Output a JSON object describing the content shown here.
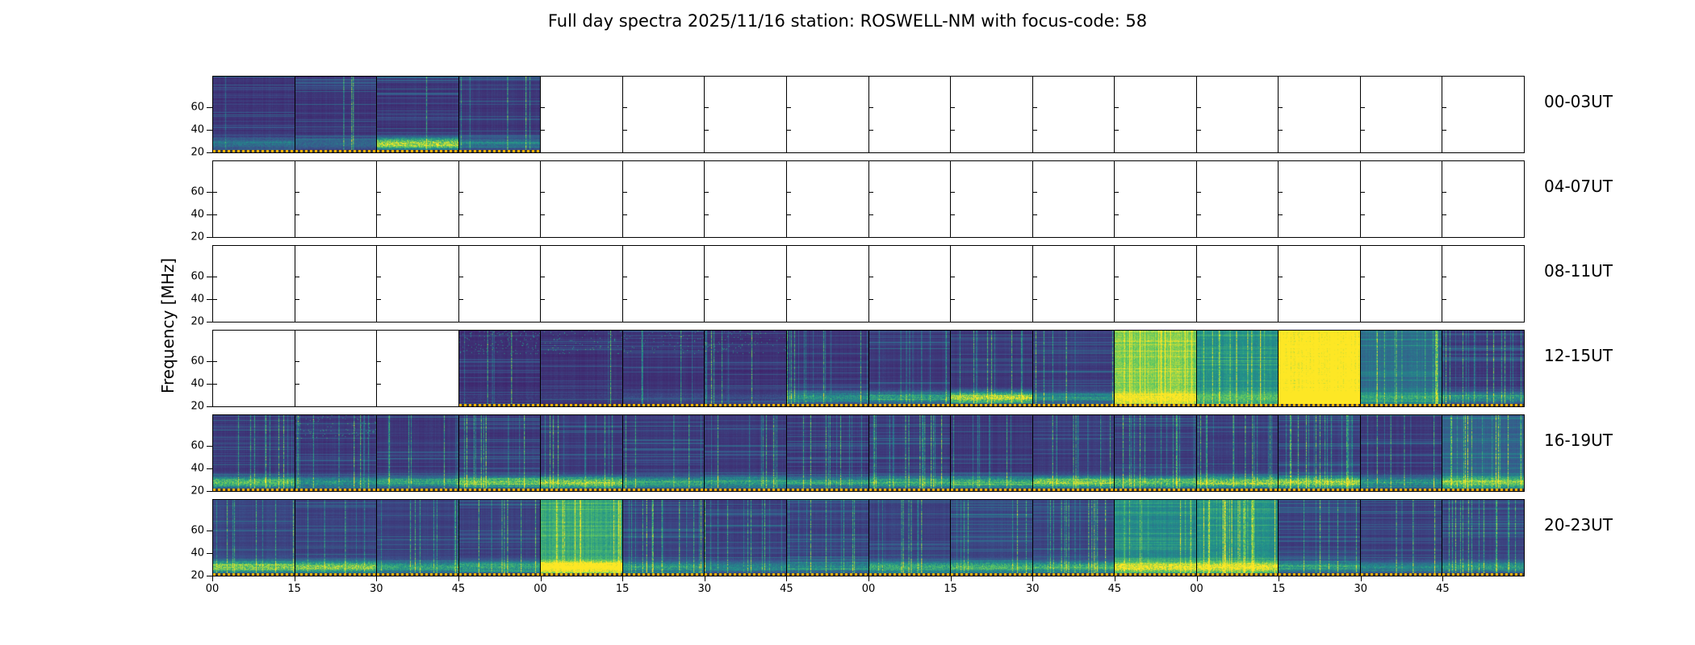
{
  "header": {
    "title": "Full day spectra 2025/11/16 station: ROSWELL-NM with focus-code: 58",
    "date": "2025/11/16",
    "station": "ROSWELL-NM",
    "focus_code": "58"
  },
  "chart_data": {
    "type": "heatmap",
    "title": "Full day spectra 2025/11/16 station: ROSWELL-NM with focus-code: 58",
    "ylabel": "Frequency [MHz]",
    "colormap": "viridis",
    "y_ticks": [
      60,
      40,
      20
    ],
    "y_range_mhz": [
      20,
      87
    ],
    "panels_per_row": 16,
    "minutes_per_panel": 15,
    "x_tick_labels": [
      "00",
      "15",
      "30",
      "45",
      "00",
      "15",
      "30",
      "45",
      "00",
      "15",
      "30",
      "45",
      "00",
      "15",
      "30",
      "45"
    ],
    "colors": {
      "background": "#ffffff",
      "frame": "#000000",
      "marker_line": "#ffb000",
      "cmap_low": "#440154",
      "cmap_mid": "#21918c",
      "cmap_high": "#fde725"
    },
    "rows": [
      {
        "label": "00-03UT",
        "panels": [
          {
            "s": "d",
            "b": 0.12,
            "bb": 0.3,
            "st": 0.15
          },
          {
            "s": "d",
            "b": 0.12,
            "bb": 0.25,
            "st": 0.1
          },
          {
            "s": "d",
            "b": 0.12,
            "bb": 0.95,
            "st": 0.1
          },
          {
            "s": "d",
            "b": 0.13,
            "bb": 0.3,
            "st": 0.2
          },
          {
            "s": "e"
          },
          {
            "s": "e"
          },
          {
            "s": "e"
          },
          {
            "s": "e"
          },
          {
            "s": "e"
          },
          {
            "s": "e"
          },
          {
            "s": "e"
          },
          {
            "s": "e"
          },
          {
            "s": "e"
          },
          {
            "s": "e"
          },
          {
            "s": "e"
          },
          {
            "s": "e"
          }
        ]
      },
      {
        "label": "04-07UT",
        "panels": [
          {
            "s": "e"
          },
          {
            "s": "e"
          },
          {
            "s": "e"
          },
          {
            "s": "e"
          },
          {
            "s": "e"
          },
          {
            "s": "e"
          },
          {
            "s": "e"
          },
          {
            "s": "e"
          },
          {
            "s": "e"
          },
          {
            "s": "e"
          },
          {
            "s": "e"
          },
          {
            "s": "e"
          },
          {
            "s": "e"
          },
          {
            "s": "e"
          },
          {
            "s": "e"
          },
          {
            "s": "e"
          }
        ]
      },
      {
        "label": "08-11UT",
        "panels": [
          {
            "s": "e"
          },
          {
            "s": "e"
          },
          {
            "s": "e"
          },
          {
            "s": "e"
          },
          {
            "s": "e"
          },
          {
            "s": "e"
          },
          {
            "s": "e"
          },
          {
            "s": "e"
          },
          {
            "s": "e"
          },
          {
            "s": "e"
          },
          {
            "s": "e"
          },
          {
            "s": "e"
          },
          {
            "s": "e"
          },
          {
            "s": "e"
          },
          {
            "s": "e"
          },
          {
            "s": "e"
          }
        ]
      },
      {
        "label": "12-15UT",
        "panels": [
          {
            "s": "e"
          },
          {
            "s": "e"
          },
          {
            "s": "e"
          },
          {
            "s": "d",
            "b": 0.1,
            "bb": 0.05,
            "st": 0.15,
            "sp": 0.35
          },
          {
            "s": "d",
            "b": 0.11,
            "bb": 0.05,
            "st": 0.15,
            "sp": 0.2
          },
          {
            "s": "d",
            "b": 0.12,
            "bb": 0.1,
            "st": 0.2,
            "sp": 0.2
          },
          {
            "s": "d",
            "b": 0.11,
            "bb": 0.1,
            "st": 0.25,
            "sp": 0.2
          },
          {
            "s": "d",
            "b": 0.12,
            "bb": 0.45,
            "st": 0.3
          },
          {
            "s": "d",
            "b": 0.13,
            "bb": 0.5,
            "st": 0.3
          },
          {
            "s": "d",
            "b": 0.13,
            "bb": 0.9,
            "st": 0.3
          },
          {
            "s": "d",
            "b": 0.14,
            "bb": 0.35,
            "st": 0.45
          },
          {
            "s": "d",
            "b": 0.2,
            "bb": 0.3,
            "st": 0.5,
            "p": 0.7
          },
          {
            "s": "d",
            "b": 0.18,
            "bb": 0.3,
            "st": 0.4,
            "p": 0.35
          },
          {
            "s": "d",
            "b": 0.25,
            "bb": 0.4,
            "st": 0.4,
            "p": 1.0
          },
          {
            "s": "d",
            "b": 0.16,
            "bb": 0.3,
            "st": 0.8,
            "p": 0.2
          },
          {
            "s": "d",
            "b": 0.13,
            "bb": 0.45,
            "st": 0.5
          }
        ]
      },
      {
        "label": "16-19UT",
        "panels": [
          {
            "s": "d",
            "b": 0.13,
            "bb": 0.7,
            "st": 0.35
          },
          {
            "s": "d",
            "b": 0.13,
            "bb": 0.45,
            "st": 0.3,
            "sp": 0.3
          },
          {
            "s": "d",
            "b": 0.13,
            "bb": 0.5,
            "st": 0.3
          },
          {
            "s": "d",
            "b": 0.13,
            "bb": 0.75,
            "st": 0.35
          },
          {
            "s": "d",
            "b": 0.13,
            "bb": 0.8,
            "st": 0.4
          },
          {
            "s": "d",
            "b": 0.13,
            "bb": 0.55,
            "st": 0.3
          },
          {
            "s": "d",
            "b": 0.13,
            "bb": 0.5,
            "st": 0.35
          },
          {
            "s": "d",
            "b": 0.13,
            "bb": 0.45,
            "st": 0.3
          },
          {
            "s": "d",
            "b": 0.14,
            "bb": 0.55,
            "st": 0.5
          },
          {
            "s": "d",
            "b": 0.13,
            "bb": 0.6,
            "st": 0.35
          },
          {
            "s": "d",
            "b": 0.14,
            "bb": 0.8,
            "st": 0.4
          },
          {
            "s": "d",
            "b": 0.14,
            "bb": 0.7,
            "st": 0.45
          },
          {
            "s": "d",
            "b": 0.14,
            "bb": 0.8,
            "st": 0.4
          },
          {
            "s": "d",
            "b": 0.15,
            "bb": 0.85,
            "st": 0.5
          },
          {
            "s": "d",
            "b": 0.13,
            "bb": 0.45,
            "st": 0.3
          },
          {
            "s": "d",
            "b": 0.15,
            "bb": 0.6,
            "st": 0.6,
            "p": 0.15
          }
        ]
      },
      {
        "label": "20-23UT",
        "panels": [
          {
            "s": "d",
            "b": 0.17,
            "bb": 0.75,
            "st": 0.35
          },
          {
            "s": "d",
            "b": 0.16,
            "bb": 0.8,
            "st": 0.3
          },
          {
            "s": "d",
            "b": 0.16,
            "bb": 0.5,
            "st": 0.3
          },
          {
            "s": "d",
            "b": 0.16,
            "bb": 0.5,
            "st": 0.35
          },
          {
            "s": "d",
            "b": 0.2,
            "bb": 0.85,
            "st": 0.3,
            "p": 0.45
          },
          {
            "s": "d",
            "b": 0.16,
            "bb": 0.45,
            "st": 0.35
          },
          {
            "s": "d",
            "b": 0.15,
            "bb": 0.35,
            "st": 0.3
          },
          {
            "s": "d",
            "b": 0.16,
            "bb": 0.35,
            "st": 0.45
          },
          {
            "s": "d",
            "b": 0.16,
            "bb": 0.55,
            "st": 0.4
          },
          {
            "s": "d",
            "b": 0.17,
            "bb": 0.6,
            "st": 0.4
          },
          {
            "s": "d",
            "b": 0.17,
            "bb": 0.55,
            "st": 0.5
          },
          {
            "s": "d",
            "b": 0.18,
            "bb": 0.7,
            "st": 0.4,
            "p": 0.3
          },
          {
            "s": "d",
            "b": 0.18,
            "bb": 0.7,
            "st": 0.5,
            "p": 0.35
          },
          {
            "s": "d",
            "b": 0.16,
            "bb": 0.45,
            "st": 0.45
          },
          {
            "s": "d",
            "b": 0.15,
            "bb": 0.35,
            "st": 0.3
          },
          {
            "s": "d",
            "b": 0.16,
            "bb": 0.45,
            "st": 0.35
          }
        ]
      }
    ]
  }
}
